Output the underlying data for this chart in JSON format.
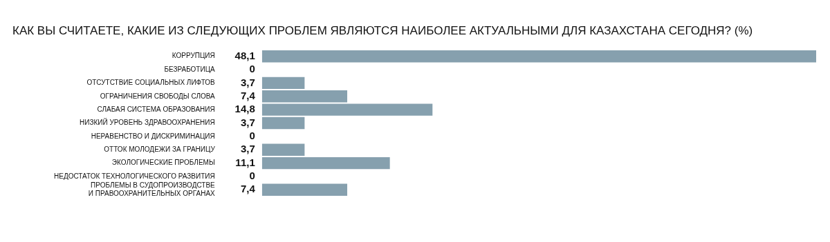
{
  "chart_data": {
    "type": "bar",
    "orientation": "horizontal",
    "title": "КАК ВЫ СЧИТАЕТЕ, КАКИЕ ИЗ СЛЕДУЮЩИХ ПРОБЛЕМ ЯВЛЯЮТСЯ НАИБОЛЕЕ АКТУАЛЬНЫМИ ДЛЯ КАЗАХСТАНА СЕГОДНЯ? (%)",
    "categories": [
      "КОРРУПЦИЯ",
      "БЕЗРАБОТИЦА",
      "ОТСУТСТВИЕ СОЦИАЛЬНЫХ ЛИФТОВ",
      "ОГРАНИЧЕНИЯ СВОБОДЫ СЛОВА",
      "СЛАБАЯ СИСТЕМА ОБРАЗОВАНИЯ",
      "НИЗКИЙ УРОВЕНЬ ЗДРАВООХРАНЕНИЯ",
      "НЕРАВЕНСТВО И ДИСКРИМИНАЦИЯ",
      "ОТТОК МОЛОДЕЖИ ЗА ГРАНИЦУ",
      "ЭКОЛОГИЧЕСКИЕ ПРОБЛЕМЫ",
      "НЕДОСТАТОК ТЕХНОЛОГИЧЕСКОГО РАЗВИТИЯ",
      "ПРОБЛЕМЫ В СУДОПРОИЗВОДСТВЕ\nИ ПРАВООХРАНИТЕЛЬНЫХ ОРГАНАХ"
    ],
    "values": [
      48.1,
      0,
      3.7,
      7.4,
      14.8,
      3.7,
      0,
      3.7,
      11.1,
      0,
      7.4
    ],
    "value_labels": [
      "48,1",
      "0",
      "3,7",
      "7,4",
      "14,8",
      "3,7",
      "0",
      "3,7",
      "11,1",
      "0",
      "7,4"
    ],
    "color": "#86a0ae"
  }
}
